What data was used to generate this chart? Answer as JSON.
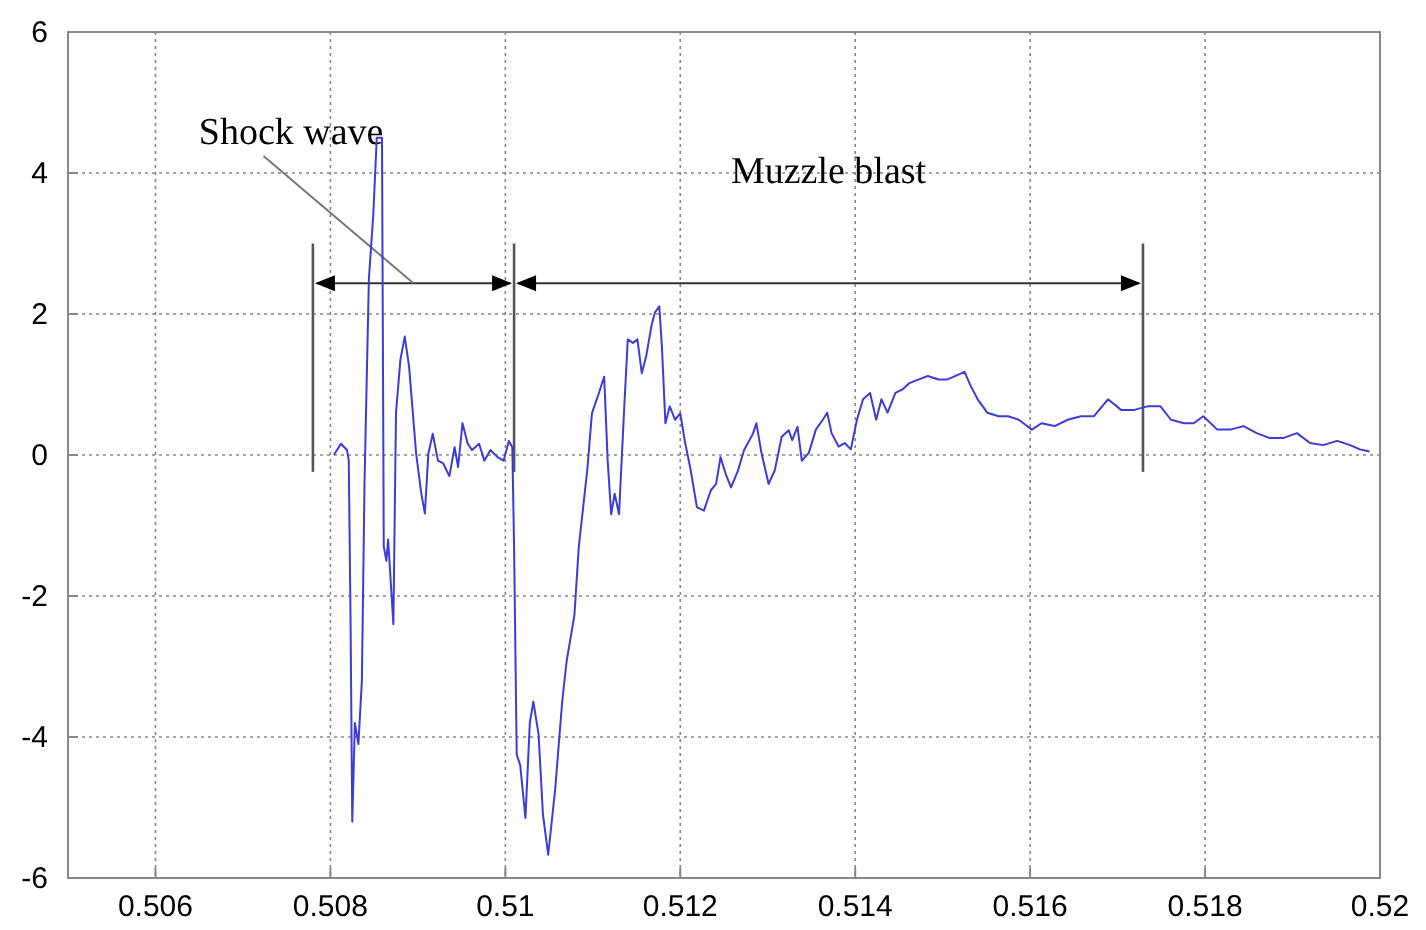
{
  "chart_data": {
    "type": "line",
    "xlim": [
      0.505,
      0.52
    ],
    "ylim": [
      -6,
      6
    ],
    "xticks": [
      0.506,
      0.508,
      0.51,
      0.512,
      0.514,
      0.516,
      0.518,
      0.52
    ],
    "yticks": [
      -6,
      -4,
      -2,
      0,
      2,
      4,
      6
    ],
    "grid": true,
    "marker": "none",
    "line_style": "solid",
    "ref_lines": [
      {
        "axis": "x",
        "value": 0.5078
      },
      {
        "axis": "x",
        "value": 0.5101
      },
      {
        "axis": "x",
        "value": 0.51729
      }
    ],
    "annotations": [
      "Shock wave",
      "Muzzle blast"
    ],
    "series": [
      {
        "color": "#3c3cd8",
        "x": [
          0.50804,
          0.50812,
          0.50819,
          0.50821,
          0.50823,
          0.50825,
          0.50828,
          0.50832,
          0.50836,
          0.50839,
          0.50844,
          0.50849,
          0.50853,
          0.50859,
          0.50861,
          0.50864,
          0.50866,
          0.50872,
          0.50875,
          0.5088,
          0.50885,
          0.5089,
          0.50898,
          0.50904,
          0.50908,
          0.50912,
          0.50917,
          0.50923,
          0.50929,
          0.50936,
          0.50942,
          0.50946,
          0.50951,
          0.50957,
          0.50962,
          0.5097,
          0.50976,
          0.50983,
          0.50991,
          0.50998,
          0.51004,
          0.51008,
          0.5101,
          0.51013,
          0.51017,
          0.51023,
          0.51028,
          0.51032,
          0.51038,
          0.51043,
          0.51049,
          0.51057,
          0.51065,
          0.5107,
          0.51079,
          0.51084,
          0.51089,
          0.51094,
          0.51099,
          0.51107,
          0.51113,
          0.51117,
          0.51121,
          0.51125,
          0.5113,
          0.51136,
          0.5114,
          0.51146,
          0.51151,
          0.51156,
          0.51161,
          0.51167,
          0.51171,
          0.51176,
          0.51179,
          0.51183,
          0.51188,
          0.51194,
          0.512,
          0.51205,
          0.51212,
          0.51219,
          0.51227,
          0.51235,
          0.51241,
          0.51246,
          0.51252,
          0.51258,
          0.51266,
          0.51273,
          0.51283,
          0.51287,
          0.51293,
          0.51301,
          0.51308,
          0.51316,
          0.51324,
          0.51328,
          0.51334,
          0.51339,
          0.51347,
          0.51355,
          0.51363,
          0.51368,
          0.51373,
          0.51381,
          0.51388,
          0.51395,
          0.51402,
          0.51409,
          0.51417,
          0.51424,
          0.5143,
          0.51437,
          0.51446,
          0.51454,
          0.51462,
          0.51472,
          0.51483,
          0.51495,
          0.51505,
          0.51514,
          0.51525,
          0.51532,
          0.5154,
          0.51551,
          0.51564,
          0.51575,
          0.51587,
          0.51602,
          0.51613,
          0.51628,
          0.51643,
          0.51658,
          0.51673,
          0.51689,
          0.51704,
          0.51719,
          0.51734,
          0.51749,
          0.51761,
          0.51776,
          0.51787,
          0.51798,
          0.51814,
          0.51829,
          0.51844,
          0.51859,
          0.51874,
          0.51889,
          0.51905,
          0.5192,
          0.51935,
          0.51951,
          0.51966,
          0.51977,
          0.51988
        ],
        "values": [
          0,
          0.16,
          0.07,
          -0.08,
          -2.3,
          -5.2,
          -3.8,
          -4.1,
          -3.2,
          -0.4,
          2.5,
          3.4,
          4.5,
          4.5,
          -1.3,
          -1.5,
          -1.2,
          -2.4,
          0.6,
          1.35,
          1.68,
          1.25,
          0.02,
          -0.55,
          -0.83,
          0.02,
          0.3,
          -0.08,
          -0.12,
          -0.3,
          0.11,
          -0.17,
          0.45,
          0.16,
          0.07,
          0.16,
          -0.08,
          0.07,
          -0.03,
          -0.08,
          0.2,
          0.11,
          -1.3,
          -4.25,
          -4.4,
          -5.15,
          -3.8,
          -3.5,
          -3.96,
          -5.1,
          -5.67,
          -4.74,
          -3.5,
          -2.93,
          -2.27,
          -1.3,
          -0.74,
          -0.17,
          0.59,
          0.88,
          1.11,
          -0.08,
          -0.84,
          -0.55,
          -0.84,
          0.69,
          1.64,
          1.59,
          1.64,
          1.16,
          1.4,
          1.83,
          2.02,
          2.11,
          1.54,
          0.45,
          0.69,
          0.5,
          0.59,
          0.21,
          -0.22,
          -0.74,
          -0.79,
          -0.5,
          -0.41,
          -0.03,
          -0.27,
          -0.46,
          -0.22,
          0.07,
          0.3,
          0.45,
          0.02,
          -0.41,
          -0.22,
          0.26,
          0.35,
          0.21,
          0.4,
          -0.08,
          0.03,
          0.36,
          0.5,
          0.6,
          0.31,
          0.12,
          0.17,
          0.08,
          0.5,
          0.79,
          0.88,
          0.5,
          0.79,
          0.6,
          0.88,
          0.93,
          1.02,
          1.07,
          1.12,
          1.07,
          1.07,
          1.12,
          1.18,
          0.98,
          0.79,
          0.6,
          0.55,
          0.55,
          0.5,
          0.36,
          0.45,
          0.41,
          0.5,
          0.55,
          0.55,
          0.79,
          0.64,
          0.64,
          0.69,
          0.69,
          0.5,
          0.45,
          0.45,
          0.55,
          0.36,
          0.36,
          0.41,
          0.31,
          0.24,
          0.24,
          0.31,
          0.17,
          0.14,
          0.2,
          0.14,
          0.08,
          0.05
        ]
      }
    ]
  }
}
